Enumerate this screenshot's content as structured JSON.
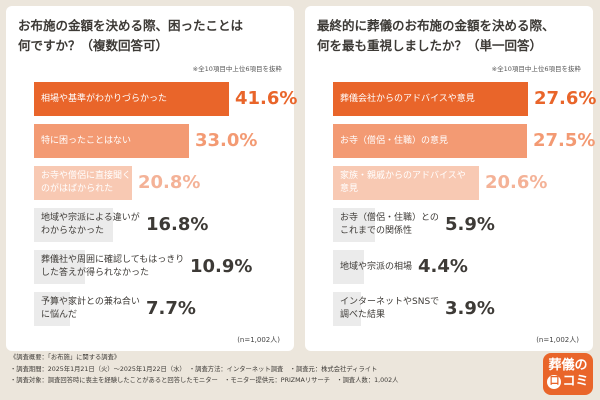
{
  "chart_data": [
    {
      "type": "bar",
      "orientation": "horizontal",
      "title": [
        "お布施の金額を決める際、困ったことは",
        "何ですか？（複数回答可）"
      ],
      "note": "※全10項目中上位6項目を抜粋",
      "sample_note": "(n=1,002人)",
      "unit": "%",
      "categories": [
        [
          "相場や基準がわかりづらかった"
        ],
        [
          "特に困ったことはない"
        ],
        [
          "お寺や僧侶に直接聞く",
          "のがはばかられた"
        ],
        [
          "地域や宗派による違いが",
          "わからなかった"
        ],
        [
          "葬儀社や周囲に確認してもはっきり",
          "した答えが得られなかった"
        ],
        [
          "予算や家計との兼ね合い",
          "に悩んだ"
        ]
      ],
      "values": [
        41.6,
        33.0,
        20.8,
        16.8,
        10.9,
        7.7
      ],
      "value_labels": [
        "41.6%",
        "33.0%",
        "20.8%",
        "16.8%",
        "10.9%",
        "7.7%"
      ]
    },
    {
      "type": "bar",
      "orientation": "horizontal",
      "title": [
        "最終的に葬儀のお布施の金額を決める際、",
        "何を最も重視しましたか？（単一回答）"
      ],
      "note": "※全10項目中上位6項目を抜粋",
      "sample_note": "(n=1,002人)",
      "unit": "%",
      "categories": [
        [
          "葬儀会社からのアドバイスや意見"
        ],
        [
          "お寺（僧侶・住職）の意見"
        ],
        [
          "家族・親戚からのアドバイスや",
          "意見"
        ],
        [
          "お寺（僧侶・住職）との",
          "これまでの関係性"
        ],
        [
          "地域や宗派の相場"
        ],
        [
          "インターネットやSNSで",
          "調べた結果"
        ]
      ],
      "values": [
        27.6,
        27.5,
        20.6,
        5.9,
        4.4,
        3.9
      ],
      "value_labels": [
        "27.6%",
        "27.5%",
        "20.6%",
        "5.9%",
        "4.4%",
        "3.9%"
      ]
    }
  ],
  "colors": {
    "bar_rank1": "#e9652a",
    "bar_rank2": "#f39a73",
    "bar_rank3": "#f8c9b3",
    "bar_other": "#ebebeb",
    "value_rank1": "#e9652a",
    "value_rank2": "#f39a73",
    "value_rank3": "#f4b297",
    "value_other": "#3d3a36",
    "label_dark_bg": "#ffffff",
    "label_other": "#3d3a36"
  },
  "footer": {
    "lines": [
      "《調査概要：「お布施」に関する調査》",
      "・調査期間：2025年1月21日（火）〜2025年1月22日（水）　・調査方法：インターネット調査　・調査元：株式会社ディライト",
      "・調査対象：調査回答時に喪主を経験したことがあると回答したモニター　・モニター提供元：PRIZMAリサーチ　・調査人数：1,002人"
    ]
  },
  "logo": {
    "line1": "葬儀の",
    "circle_char": "口",
    "line2_rest": "コミ"
  }
}
